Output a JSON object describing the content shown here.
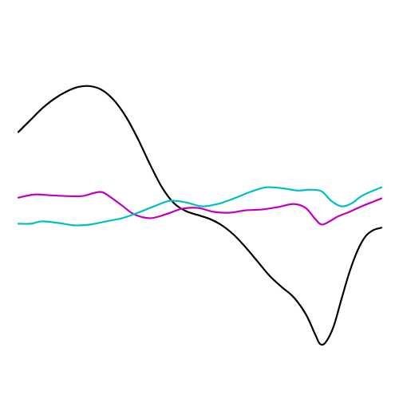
{
  "chart_data": {
    "type": "line",
    "title": "",
    "xlabel": "",
    "ylabel": "",
    "axes_visible": false,
    "grid": false,
    "legend": "none",
    "xlim": [
      0,
      455
    ],
    "ylim": [
      -430,
      -100
    ],
    "series": [
      {
        "color": "#000000",
        "values": [
          [
            0,
            -162
          ],
          [
            15,
            -147
          ],
          [
            30,
            -132
          ],
          [
            45,
            -120
          ],
          [
            60,
            -111
          ],
          [
            75,
            -105
          ],
          [
            90,
            -104
          ],
          [
            105,
            -109
          ],
          [
            120,
            -122
          ],
          [
            135,
            -143
          ],
          [
            150,
            -171
          ],
          [
            165,
            -203
          ],
          [
            180,
            -232
          ],
          [
            195,
            -252
          ],
          [
            210,
            -262
          ],
          [
            225,
            -267
          ],
          [
            240,
            -272
          ],
          [
            255,
            -280
          ],
          [
            270,
            -292
          ],
          [
            285,
            -308
          ],
          [
            300,
            -326
          ],
          [
            315,
            -344
          ],
          [
            330,
            -358
          ],
          [
            345,
            -371
          ],
          [
            360,
            -392
          ],
          [
            372,
            -418
          ],
          [
            378,
            -430
          ],
          [
            385,
            -428
          ],
          [
            395,
            -408
          ],
          [
            405,
            -373
          ],
          [
            415,
            -339
          ],
          [
            425,
            -312
          ],
          [
            435,
            -294
          ],
          [
            445,
            -286
          ],
          [
            455,
            -283
          ]
        ]
      },
      {
        "color": "#c000c0",
        "values": [
          [
            0,
            -245
          ],
          [
            20,
            -241
          ],
          [
            40,
            -242
          ],
          [
            60,
            -243
          ],
          [
            80,
            -243
          ],
          [
            95,
            -239
          ],
          [
            105,
            -238
          ],
          [
            115,
            -244
          ],
          [
            130,
            -255
          ],
          [
            145,
            -266
          ],
          [
            165,
            -271
          ],
          [
            185,
            -266
          ],
          [
            205,
            -259
          ],
          [
            225,
            -258
          ],
          [
            245,
            -263
          ],
          [
            265,
            -264
          ],
          [
            285,
            -261
          ],
          [
            305,
            -260
          ],
          [
            325,
            -257
          ],
          [
            345,
            -253
          ],
          [
            360,
            -258
          ],
          [
            372,
            -272
          ],
          [
            380,
            -279
          ],
          [
            390,
            -275
          ],
          [
            400,
            -269
          ],
          [
            415,
            -263
          ],
          [
            430,
            -256
          ],
          [
            445,
            -250
          ],
          [
            455,
            -246
          ]
        ]
      },
      {
        "color": "#00c0c0",
        "values": [
          [
            0,
            -278
          ],
          [
            15,
            -278
          ],
          [
            30,
            -275
          ],
          [
            50,
            -277
          ],
          [
            70,
            -280
          ],
          [
            90,
            -279
          ],
          [
            110,
            -275
          ],
          [
            130,
            -271
          ],
          [
            150,
            -264
          ],
          [
            170,
            -256
          ],
          [
            190,
            -249
          ],
          [
            210,
            -251
          ],
          [
            230,
            -256
          ],
          [
            250,
            -253
          ],
          [
            270,
            -246
          ],
          [
            290,
            -238
          ],
          [
            310,
            -232
          ],
          [
            330,
            -233
          ],
          [
            350,
            -236
          ],
          [
            365,
            -235
          ],
          [
            380,
            -237
          ],
          [
            392,
            -249
          ],
          [
            405,
            -256
          ],
          [
            418,
            -252
          ],
          [
            430,
            -243
          ],
          [
            445,
            -236
          ],
          [
            455,
            -232
          ]
        ]
      }
    ]
  }
}
